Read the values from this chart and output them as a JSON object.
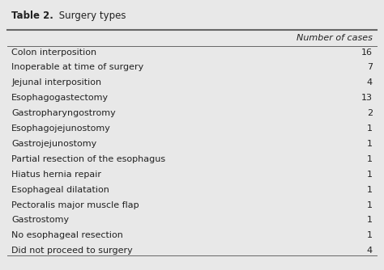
{
  "title_bold": "Table 2.",
  "title_normal": " Surgery types",
  "col_header": "Number of cases",
  "rows": [
    [
      "Colon interposition",
      "16"
    ],
    [
      "Inoperable at time of surgery",
      "7"
    ],
    [
      "Jejunal interposition",
      "4"
    ],
    [
      "Esophagogastectomy",
      "13"
    ],
    [
      "Gastropharyngostromy",
      "2"
    ],
    [
      "Esophagojejunostomy",
      "1"
    ],
    [
      "Gastrojejunostomy",
      "1"
    ],
    [
      "Partial resection of the esophagus",
      "1"
    ],
    [
      "Hiatus hernia repair",
      "1"
    ],
    [
      "Esophageal dilatation",
      "1"
    ],
    [
      "Pectoralis major muscle flap",
      "1"
    ],
    [
      "Gastrostomy",
      "1"
    ],
    [
      "No esophageal resection",
      "1"
    ],
    [
      "Did not proceed to surgery",
      "4"
    ]
  ],
  "bg_color": "#e8e8e8",
  "text_color": "#222222",
  "font_size": 8.0,
  "title_font_size": 8.5,
  "header_font_size": 8.0,
  "line_color": "#666666"
}
